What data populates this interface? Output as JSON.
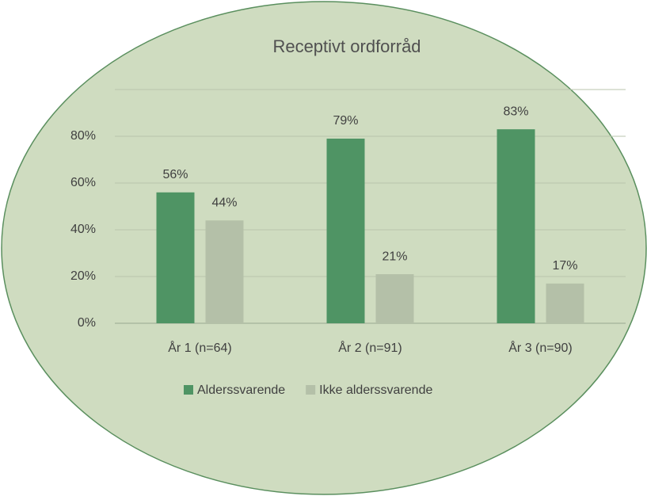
{
  "chart_data": {
    "type": "bar",
    "title": "Receptivt ordforråd",
    "categories": [
      "År 1 (n=64)",
      "År 2 (n=91)",
      "År 3 (n=90)"
    ],
    "series": [
      {
        "name": "Alderssvarende",
        "color": "#4f9464",
        "values": [
          56,
          79,
          83
        ],
        "value_labels": [
          "56%",
          "79%",
          "83%"
        ]
      },
      {
        "name": "Ikke alderssvarende",
        "color": "#b4c0a8",
        "values": [
          44,
          21,
          17
        ],
        "value_labels": [
          "44%",
          "21%",
          "17%"
        ]
      }
    ],
    "ylim": [
      0,
      100
    ],
    "yticks": [
      {
        "value": 0,
        "label": "0%"
      },
      {
        "value": 20,
        "label": "20%"
      },
      {
        "value": 40,
        "label": "40%"
      },
      {
        "value": 60,
        "label": "60%"
      },
      {
        "value": 80,
        "label": "80%"
      }
    ],
    "grid": true,
    "legend": "bottom"
  }
}
